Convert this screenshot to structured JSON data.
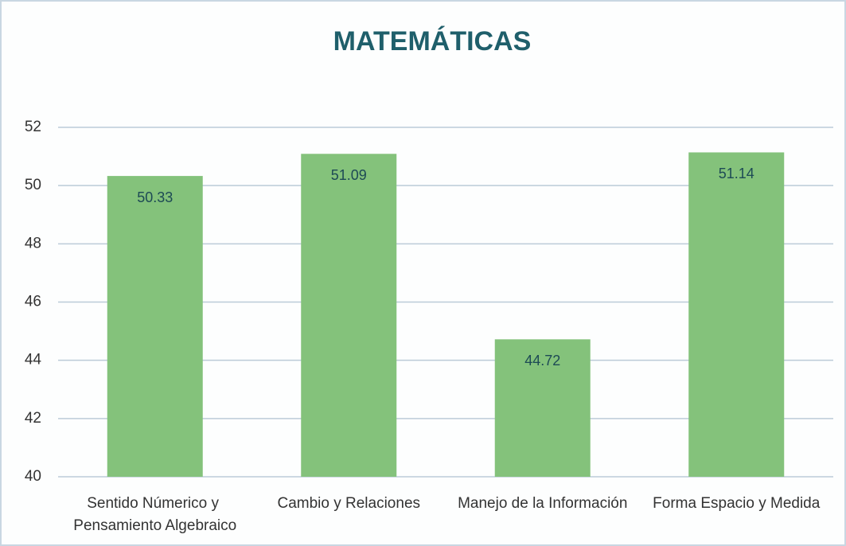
{
  "chart_data": {
    "type": "bar",
    "title": "MATEMÁTICAS",
    "categories": [
      "Sentido Númerico y Pensamiento Algebraico",
      "Cambio y Relaciones",
      "Manejo de la Información",
      "Forma Espacio y Medida"
    ],
    "values": [
      50.33,
      51.09,
      44.72,
      51.14
    ],
    "color": "#84c27b",
    "ylim": [
      40,
      52
    ],
    "yticks": [
      40,
      42,
      44,
      46,
      48,
      50,
      52
    ],
    "grid": true
  }
}
